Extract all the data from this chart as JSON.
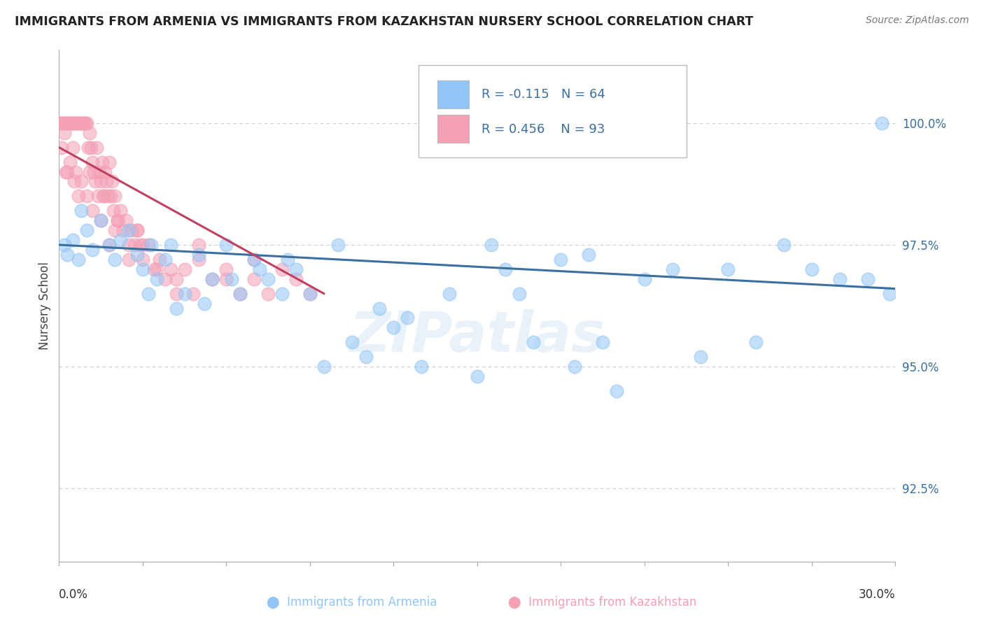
{
  "title": "IMMIGRANTS FROM ARMENIA VS IMMIGRANTS FROM KAZAKHSTAN NURSERY SCHOOL CORRELATION CHART",
  "source": "Source: ZipAtlas.com",
  "ylabel": "Nursery School",
  "xmin": 0.0,
  "xmax": 30.0,
  "ymin": 91.0,
  "ymax": 101.5,
  "ytick_values": [
    92.5,
    95.0,
    97.5,
    100.0
  ],
  "ytick_labels": [
    "92.5%",
    "95.0%",
    "97.5%",
    "100.0%"
  ],
  "armenia_color": "#92C5F7",
  "kazakhstan_color": "#F4A0B5",
  "trendline_armenia_color": "#3B6FA0",
  "trendline_kazakhstan_color": "#C04060",
  "watermark": "ZIPatlas",
  "background_color": "#FFFFFF",
  "grid_color": "#CCCCCC",
  "legend_armenia_R": "R = -0.115",
  "legend_armenia_N": "N = 64",
  "legend_kazakhstan_R": "R = 0.456",
  "legend_kazakhstan_N": "N = 93",
  "armenia_x": [
    0.2,
    0.3,
    0.5,
    0.7,
    0.8,
    1.0,
    1.2,
    1.5,
    1.8,
    2.0,
    2.2,
    2.5,
    2.8,
    3.0,
    3.3,
    3.5,
    3.8,
    4.0,
    4.5,
    5.0,
    5.5,
    6.0,
    6.5,
    7.0,
    7.5,
    8.0,
    8.5,
    9.0,
    9.5,
    10.0,
    10.5,
    11.0,
    12.0,
    13.0,
    14.0,
    15.0,
    16.0,
    17.0,
    18.0,
    18.5,
    19.0,
    20.0,
    21.0,
    22.0,
    23.0,
    24.0,
    25.0,
    26.0,
    27.0,
    28.0,
    29.0,
    29.5,
    11.5,
    12.5,
    15.5,
    16.5,
    4.2,
    3.2,
    7.2,
    8.2,
    5.2,
    6.2,
    19.5,
    29.8
  ],
  "armenia_y": [
    97.5,
    97.3,
    97.6,
    97.2,
    98.2,
    97.8,
    97.4,
    98.0,
    97.5,
    97.2,
    97.6,
    97.8,
    97.3,
    97.0,
    97.5,
    96.8,
    97.2,
    97.5,
    96.5,
    97.3,
    96.8,
    97.5,
    96.5,
    97.2,
    96.8,
    96.5,
    97.0,
    96.5,
    95.0,
    97.5,
    95.5,
    95.2,
    95.8,
    95.0,
    96.5,
    94.8,
    97.0,
    95.5,
    97.2,
    95.0,
    97.3,
    94.5,
    96.8,
    97.0,
    95.2,
    97.0,
    95.5,
    97.5,
    97.0,
    96.8,
    96.8,
    100.0,
    96.2,
    96.0,
    97.5,
    96.5,
    96.2,
    96.5,
    97.0,
    97.2,
    96.3,
    96.8,
    95.5,
    96.5
  ],
  "armenia_trend_x0": 0.0,
  "armenia_trend_x1": 30.0,
  "armenia_trend_y0": 97.5,
  "armenia_trend_y1": 96.6,
  "kazakhstan_x": [
    0.05,
    0.1,
    0.15,
    0.2,
    0.25,
    0.3,
    0.35,
    0.4,
    0.45,
    0.5,
    0.55,
    0.6,
    0.65,
    0.7,
    0.75,
    0.8,
    0.85,
    0.9,
    0.95,
    1.0,
    1.05,
    1.1,
    1.15,
    1.2,
    1.25,
    1.3,
    1.35,
    1.4,
    1.45,
    1.5,
    1.55,
    1.6,
    1.65,
    1.7,
    1.75,
    1.8,
    1.85,
    1.9,
    1.95,
    2.0,
    2.1,
    2.2,
    2.3,
    2.4,
    2.5,
    2.6,
    2.7,
    2.8,
    2.9,
    3.0,
    3.2,
    3.4,
    3.6,
    3.8,
    4.0,
    4.2,
    4.5,
    4.8,
    5.0,
    5.5,
    6.0,
    6.5,
    7.0,
    7.5,
    8.0,
    8.5,
    9.0,
    0.3,
    0.5,
    0.7,
    0.2,
    0.4,
    0.6,
    0.8,
    1.0,
    1.2,
    1.5,
    1.8,
    2.0,
    2.5,
    3.0,
    0.1,
    0.25,
    0.55,
    1.1,
    1.6,
    2.1,
    2.8,
    3.5,
    4.2,
    5.0,
    6.0,
    7.0
  ],
  "kazakhstan_y": [
    100.0,
    100.0,
    100.0,
    100.0,
    100.0,
    100.0,
    100.0,
    100.0,
    100.0,
    100.0,
    100.0,
    100.0,
    100.0,
    100.0,
    100.0,
    100.0,
    100.0,
    100.0,
    100.0,
    100.0,
    99.5,
    99.8,
    99.5,
    99.2,
    99.0,
    98.8,
    99.5,
    98.5,
    99.0,
    98.8,
    99.2,
    98.5,
    99.0,
    98.8,
    98.5,
    99.2,
    98.5,
    98.8,
    98.2,
    98.5,
    98.0,
    98.2,
    97.8,
    98.0,
    97.5,
    97.8,
    97.5,
    97.8,
    97.5,
    97.2,
    97.5,
    97.0,
    97.2,
    96.8,
    97.0,
    96.8,
    97.0,
    96.5,
    97.2,
    96.8,
    97.0,
    96.5,
    96.8,
    96.5,
    97.0,
    96.8,
    96.5,
    99.0,
    99.5,
    98.5,
    99.8,
    99.2,
    99.0,
    98.8,
    98.5,
    98.2,
    98.0,
    97.5,
    97.8,
    97.2,
    97.5,
    99.5,
    99.0,
    98.8,
    99.0,
    98.5,
    98.0,
    97.8,
    97.0,
    96.5,
    97.5,
    96.8,
    97.2
  ],
  "kazakhstan_trend_x0": 0.0,
  "kazakhstan_trend_x1": 9.5,
  "kazakhstan_trend_y0": 99.5,
  "kazakhstan_trend_y1": 96.5
}
